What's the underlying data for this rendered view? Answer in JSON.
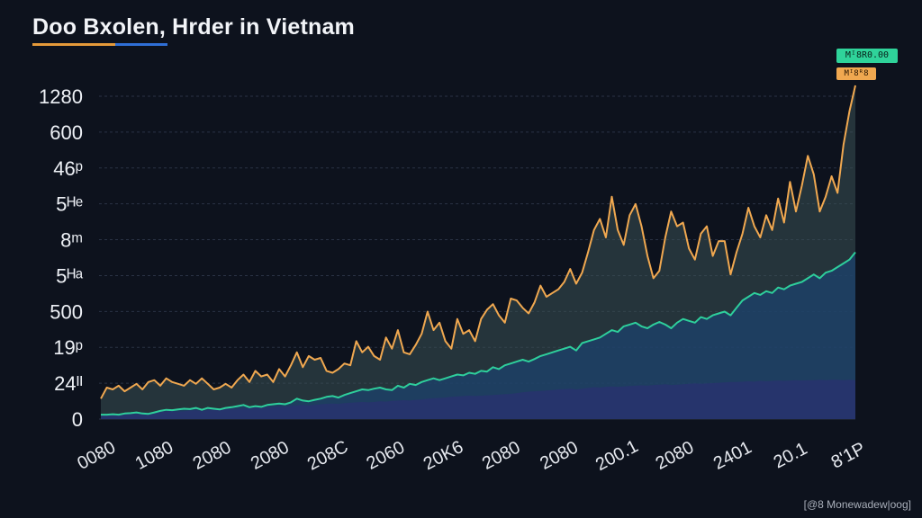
{
  "chart_data": {
    "type": "area",
    "title": "Doo Bxolen, Hrder in Vietnam",
    "y_ticks": [
      "1280",
      "600",
      "46ᵖ",
      "5ᴴᵉ",
      "8ᵐ",
      "5ᴴᵃ",
      "500",
      "19ᵖ",
      "24ᴵᴵ",
      "0"
    ],
    "x_ticks": [
      "0080",
      "1080",
      "2080",
      "2080",
      "208C",
      "2060",
      "20K6",
      "2080",
      "2080",
      "200.1",
      "2080",
      "2401",
      "20.1",
      "8'1P"
    ],
    "ylim": [
      0,
      9
    ],
    "grid": true,
    "badges": [
      "Mᴵ8R0.00",
      "Mᴵ8ᴿ8"
    ],
    "series": [
      {
        "color": "#f0a850",
        "values": [
          0.55,
          0.85,
          0.8,
          0.9,
          0.75,
          0.85,
          0.95,
          0.8,
          1.0,
          1.05,
          0.9,
          1.1,
          1.0,
          0.95,
          0.9,
          1.05,
          0.95,
          1.1,
          0.95,
          0.8,
          0.85,
          0.95,
          0.85,
          1.05,
          1.2,
          1.0,
          1.3,
          1.15,
          1.2,
          1.0,
          1.35,
          1.15,
          1.45,
          1.8,
          1.4,
          1.7,
          1.6,
          1.65,
          1.3,
          1.25,
          1.35,
          1.5,
          1.45,
          2.1,
          1.8,
          1.95,
          1.7,
          1.6,
          2.2,
          1.9,
          2.4,
          1.8,
          1.75,
          2.0,
          2.3,
          2.9,
          2.4,
          2.6,
          2.1,
          1.9,
          2.7,
          2.3,
          2.4,
          2.1,
          2.7,
          2.95,
          3.1,
          2.8,
          2.6,
          3.25,
          3.2,
          3.0,
          2.85,
          3.15,
          3.6,
          3.3,
          3.4,
          3.5,
          3.7,
          4.05,
          3.65,
          3.95,
          4.5,
          5.1,
          5.4,
          4.9,
          6.0,
          5.1,
          4.7,
          5.5,
          5.8,
          5.2,
          4.4,
          3.8,
          4.0,
          4.9,
          5.6,
          5.2,
          5.3,
          4.6,
          4.3,
          5.0,
          5.2,
          4.4,
          4.8,
          4.8,
          3.9,
          4.5,
          5.0,
          5.7,
          5.2,
          4.9,
          5.5,
          5.1,
          5.95,
          5.3,
          6.4,
          5.6,
          6.3,
          7.1,
          6.6,
          5.6,
          6.0,
          6.55,
          6.1,
          7.4,
          8.3,
          9.0
        ]
      },
      {
        "color": "#2ecf9c",
        "values": [
          0.12,
          0.12,
          0.13,
          0.12,
          0.15,
          0.16,
          0.18,
          0.15,
          0.14,
          0.18,
          0.22,
          0.25,
          0.24,
          0.26,
          0.28,
          0.27,
          0.3,
          0.25,
          0.3,
          0.28,
          0.26,
          0.3,
          0.32,
          0.35,
          0.38,
          0.32,
          0.35,
          0.33,
          0.38,
          0.4,
          0.42,
          0.4,
          0.45,
          0.55,
          0.5,
          0.48,
          0.52,
          0.55,
          0.6,
          0.62,
          0.58,
          0.65,
          0.7,
          0.75,
          0.8,
          0.78,
          0.82,
          0.85,
          0.8,
          0.78,
          0.9,
          0.85,
          0.95,
          0.92,
          1.0,
          1.05,
          1.1,
          1.05,
          1.1,
          1.15,
          1.2,
          1.18,
          1.25,
          1.22,
          1.3,
          1.28,
          1.4,
          1.35,
          1.45,
          1.5,
          1.55,
          1.6,
          1.55,
          1.62,
          1.7,
          1.75,
          1.8,
          1.85,
          1.9,
          1.95,
          1.85,
          2.05,
          2.1,
          2.15,
          2.2,
          2.3,
          2.4,
          2.35,
          2.5,
          2.55,
          2.6,
          2.5,
          2.45,
          2.55,
          2.62,
          2.55,
          2.45,
          2.6,
          2.7,
          2.65,
          2.6,
          2.75,
          2.7,
          2.8,
          2.85,
          2.9,
          2.8,
          3.0,
          3.2,
          3.3,
          3.4,
          3.35,
          3.45,
          3.4,
          3.55,
          3.5,
          3.6,
          3.65,
          3.7,
          3.8,
          3.9,
          3.8,
          3.95,
          4.0,
          4.1,
          4.2,
          4.3,
          4.5
        ]
      },
      {
        "color": "#27376d",
        "values": [
          0.1,
          0.12,
          0.11,
          0.13,
          0.15,
          0.14,
          0.16,
          0.18,
          0.17,
          0.19,
          0.2,
          0.21,
          0.22,
          0.2,
          0.21,
          0.23,
          0.24,
          0.22,
          0.24,
          0.26,
          0.25,
          0.27,
          0.28,
          0.27,
          0.29,
          0.3,
          0.31,
          0.3,
          0.32,
          0.33,
          0.35,
          0.34,
          0.36,
          0.37,
          0.38,
          0.37,
          0.38,
          0.4,
          0.41,
          0.42,
          0.41,
          0.43,
          0.44,
          0.45,
          0.46,
          0.45,
          0.46,
          0.48,
          0.47,
          0.49,
          0.5,
          0.51,
          0.5,
          0.52,
          0.53,
          0.55,
          0.56,
          0.57,
          0.58,
          0.6,
          0.61,
          0.62,
          0.63,
          0.62,
          0.63,
          0.64,
          0.65,
          0.66,
          0.67,
          0.68,
          0.7,
          0.72,
          0.74,
          0.75,
          0.76,
          0.77,
          0.78,
          0.8,
          0.81,
          0.82,
          0.8,
          0.82,
          0.84,
          0.86,
          0.85,
          0.87,
          0.88,
          0.87,
          0.88,
          0.89,
          0.9,
          0.91,
          0.9,
          0.92,
          0.93,
          0.94,
          0.92,
          0.93,
          0.94,
          0.95,
          0.96,
          0.95,
          0.96,
          0.97,
          0.98,
          0.99,
          1.0,
          1.0,
          1.01,
          1.02,
          1.01,
          1.03,
          1.02,
          1.03,
          1.04,
          1.03,
          1.04,
          1.05,
          1.04,
          1.05,
          1.05,
          1.06,
          1.05,
          1.06,
          1.06,
          1.05,
          1.06,
          1.05
        ]
      }
    ]
  },
  "watermark": "[@8 Monewadew|oog]"
}
